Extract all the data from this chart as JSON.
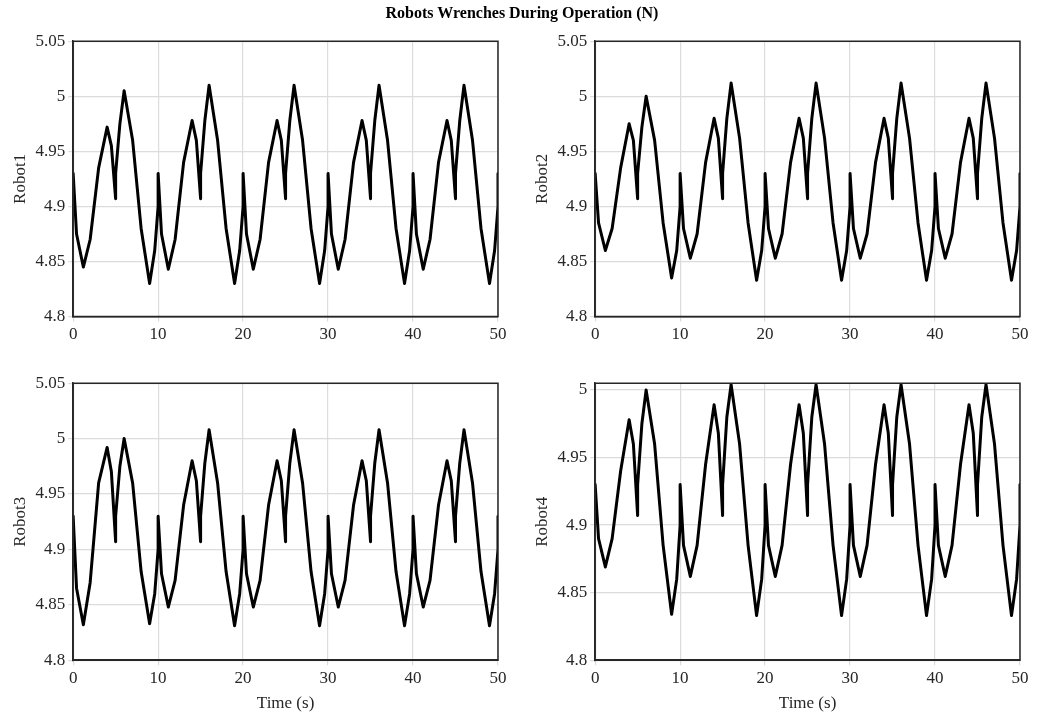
{
  "chart_data": [
    {
      "type": "line",
      "title": "Robots Wrenches During Operation (N)",
      "ylabel": "Robot1",
      "xlim": [
        0,
        50
      ],
      "xticks": [
        0,
        10,
        20,
        30,
        40,
        50
      ],
      "ylim": [
        4.8,
        5.05
      ],
      "yticks": [
        4.8,
        4.85,
        4.9,
        4.95,
        5,
        5.05
      ],
      "grid": true,
      "legend": false,
      "marker": "none",
      "line_style": "solid",
      "x": [
        0,
        0.4,
        1.2,
        2,
        3,
        4,
        4.5,
        5,
        5,
        5.5,
        6,
        7,
        8,
        9,
        9.6,
        10,
        10,
        10.4,
        11.2,
        12,
        13,
        14,
        14.5,
        15,
        15,
        15.5,
        16,
        17,
        18,
        19,
        19.6,
        20,
        20,
        20.4,
        21.2,
        22,
        23,
        24,
        24.5,
        25,
        25,
        25.5,
        26,
        27,
        28,
        29,
        29.6,
        30,
        30,
        30.4,
        31.2,
        32,
        33,
        34,
        34.5,
        35,
        35,
        35.5,
        36,
        37,
        38,
        39,
        39.6,
        40,
        40,
        40.4,
        41.2,
        42,
        43,
        44,
        44.5,
        45,
        45,
        45.5,
        46,
        47,
        48,
        49,
        49.6,
        50,
        50
      ],
      "series": [
        {
          "color": "#000000",
          "values": [
            4.93,
            4.875,
            4.845,
            4.87,
            4.935,
            4.972,
            4.955,
            4.907,
            4.93,
            4.975,
            5.005,
            4.96,
            4.88,
            4.83,
            4.86,
            4.9,
            4.93,
            4.875,
            4.843,
            4.87,
            4.94,
            4.978,
            4.96,
            4.907,
            4.93,
            4.978,
            5.01,
            4.96,
            4.88,
            4.83,
            4.86,
            4.9,
            4.93,
            4.875,
            4.843,
            4.87,
            4.94,
            4.978,
            4.96,
            4.907,
            4.93,
            4.978,
            5.01,
            4.96,
            4.88,
            4.83,
            4.86,
            4.9,
            4.93,
            4.875,
            4.843,
            4.87,
            4.94,
            4.978,
            4.96,
            4.907,
            4.93,
            4.978,
            5.01,
            4.96,
            4.88,
            4.83,
            4.86,
            4.9,
            4.93,
            4.875,
            4.843,
            4.87,
            4.94,
            4.978,
            4.96,
            4.907,
            4.93,
            4.978,
            5.01,
            4.96,
            4.88,
            4.83,
            4.86,
            4.9,
            4.93
          ]
        }
      ]
    },
    {
      "type": "line",
      "ylabel": "Robot2",
      "xlim": [
        0,
        50
      ],
      "xticks": [
        0,
        10,
        20,
        30,
        40,
        50
      ],
      "ylim": [
        4.8,
        5.05
      ],
      "yticks": [
        4.8,
        4.85,
        4.9,
        4.95,
        5,
        5.05
      ],
      "grid": true,
      "legend": false,
      "marker": "none",
      "line_style": "solid",
      "x": [
        0,
        0.4,
        1.2,
        2,
        3,
        4,
        4.5,
        5,
        5,
        5.5,
        6,
        7,
        8,
        9,
        9.6,
        10,
        10,
        10.4,
        11.2,
        12,
        13,
        14,
        14.5,
        15,
        15,
        15.5,
        16,
        17,
        18,
        19,
        19.6,
        20,
        20,
        20.4,
        21.2,
        22,
        23,
        24,
        24.5,
        25,
        25,
        25.5,
        26,
        27,
        28,
        29,
        29.6,
        30,
        30,
        30.4,
        31.2,
        32,
        33,
        34,
        34.5,
        35,
        35,
        35.5,
        36,
        37,
        38,
        39,
        39.6,
        40,
        40,
        40.4,
        41.2,
        42,
        43,
        44,
        44.5,
        45,
        45,
        45.5,
        46,
        47,
        48,
        49,
        49.6,
        50,
        50
      ],
      "series": [
        {
          "color": "#000000",
          "values": [
            4.93,
            4.885,
            4.86,
            4.88,
            4.935,
            4.975,
            4.96,
            4.907,
            4.93,
            4.972,
            5,
            4.96,
            4.885,
            4.835,
            4.86,
            4.9,
            4.93,
            4.88,
            4.853,
            4.875,
            4.94,
            4.98,
            4.962,
            4.907,
            4.93,
            4.98,
            5.012,
            4.962,
            4.885,
            4.833,
            4.86,
            4.9,
            4.93,
            4.88,
            4.853,
            4.875,
            4.94,
            4.98,
            4.962,
            4.907,
            4.93,
            4.98,
            5.012,
            4.962,
            4.885,
            4.833,
            4.86,
            4.9,
            4.93,
            4.88,
            4.853,
            4.875,
            4.94,
            4.98,
            4.962,
            4.907,
            4.93,
            4.98,
            5.012,
            4.962,
            4.885,
            4.833,
            4.86,
            4.9,
            4.93,
            4.88,
            4.853,
            4.875,
            4.94,
            4.98,
            4.962,
            4.907,
            4.93,
            4.98,
            5.012,
            4.962,
            4.885,
            4.833,
            4.86,
            4.9,
            4.93
          ]
        }
      ]
    },
    {
      "type": "line",
      "ylabel": "Robot3",
      "xlabel": "Time (s)",
      "xlim": [
        0,
        50
      ],
      "xticks": [
        0,
        10,
        20,
        30,
        40,
        50
      ],
      "ylim": [
        4.8,
        5.05
      ],
      "yticks": [
        4.8,
        4.85,
        4.9,
        4.95,
        5,
        5.05
      ],
      "grid": true,
      "legend": false,
      "marker": "none",
      "line_style": "solid",
      "x": [
        0,
        0.4,
        1.2,
        2,
        3,
        4,
        4.5,
        5,
        5,
        5.5,
        6,
        7,
        8,
        9,
        9.6,
        10,
        10,
        10.4,
        11.2,
        12,
        13,
        14,
        14.5,
        15,
        15,
        15.5,
        16,
        17,
        18,
        19,
        19.6,
        20,
        20,
        20.4,
        21.2,
        22,
        23,
        24,
        24.5,
        25,
        25,
        25.5,
        26,
        27,
        28,
        29,
        29.6,
        30,
        30,
        30.4,
        31.2,
        32,
        33,
        34,
        34.5,
        35,
        35,
        35.5,
        36,
        37,
        38,
        39,
        39.6,
        40,
        40,
        40.4,
        41.2,
        42,
        43,
        44,
        44.5,
        45,
        45,
        45.5,
        46,
        47,
        48,
        49,
        49.6,
        50,
        50
      ],
      "series": [
        {
          "color": "#000000",
          "values": [
            4.93,
            4.865,
            4.832,
            4.87,
            4.96,
            4.992,
            4.97,
            4.907,
            4.93,
            4.975,
            5,
            4.96,
            4.88,
            4.833,
            4.86,
            4.9,
            4.93,
            4.878,
            4.848,
            4.872,
            4.94,
            4.98,
            4.962,
            4.907,
            4.93,
            4.978,
            5.008,
            4.96,
            4.88,
            4.831,
            4.86,
            4.9,
            4.93,
            4.878,
            4.848,
            4.872,
            4.94,
            4.98,
            4.962,
            4.907,
            4.93,
            4.978,
            5.008,
            4.96,
            4.88,
            4.831,
            4.86,
            4.9,
            4.93,
            4.878,
            4.848,
            4.872,
            4.94,
            4.98,
            4.962,
            4.907,
            4.93,
            4.978,
            5.008,
            4.96,
            4.88,
            4.831,
            4.86,
            4.9,
            4.93,
            4.878,
            4.848,
            4.872,
            4.94,
            4.98,
            4.962,
            4.907,
            4.93,
            4.978,
            5.008,
            4.96,
            4.88,
            4.831,
            4.86,
            4.9,
            4.93
          ]
        }
      ]
    },
    {
      "type": "line",
      "ylabel": "Robot4",
      "xlabel": "Time (s)",
      "xlim": [
        0,
        50
      ],
      "xticks": [
        0,
        10,
        20,
        30,
        40,
        50
      ],
      "ylim": [
        4.8,
        5.005
      ],
      "yticks": [
        4.8,
        4.85,
        4.9,
        4.95,
        5
      ],
      "grid": true,
      "legend": false,
      "marker": "none",
      "line_style": "solid",
      "x": [
        0,
        0.4,
        1.2,
        2,
        3,
        4,
        4.5,
        5,
        5,
        5.5,
        6,
        7,
        8,
        9,
        9.6,
        10,
        10,
        10.4,
        11.2,
        12,
        13,
        14,
        14.5,
        15,
        15,
        15.5,
        16,
        17,
        18,
        19,
        19.6,
        20,
        20,
        20.4,
        21.2,
        22,
        23,
        24,
        24.5,
        25,
        25,
        25.5,
        26,
        27,
        28,
        29,
        29.6,
        30,
        30,
        30.4,
        31.2,
        32,
        33,
        34,
        34.5,
        35,
        35,
        35.5,
        36,
        37,
        38,
        39,
        39.6,
        40,
        40,
        40.4,
        41.2,
        42,
        43,
        44,
        44.5,
        45,
        45,
        45.5,
        46,
        47,
        48,
        49,
        49.6,
        50,
        50
      ],
      "series": [
        {
          "color": "#000000",
          "values": [
            4.93,
            4.89,
            4.869,
            4.89,
            4.94,
            4.978,
            4.96,
            4.907,
            4.93,
            4.975,
            5,
            4.96,
            4.885,
            4.834,
            4.86,
            4.9,
            4.93,
            4.885,
            4.862,
            4.885,
            4.945,
            4.989,
            4.968,
            4.907,
            4.93,
            4.98,
            5.004,
            4.96,
            4.885,
            4.833,
            4.86,
            4.9,
            4.93,
            4.885,
            4.862,
            4.885,
            4.945,
            4.989,
            4.968,
            4.907,
            4.93,
            4.98,
            5.004,
            4.96,
            4.885,
            4.833,
            4.86,
            4.9,
            4.93,
            4.885,
            4.862,
            4.885,
            4.945,
            4.989,
            4.968,
            4.907,
            4.93,
            4.98,
            5.004,
            4.96,
            4.885,
            4.833,
            4.86,
            4.9,
            4.93,
            4.885,
            4.862,
            4.885,
            4.945,
            4.989,
            4.968,
            4.907,
            4.93,
            4.98,
            5.004,
            4.96,
            4.885,
            4.833,
            4.86,
            4.9,
            4.93
          ]
        }
      ]
    }
  ]
}
